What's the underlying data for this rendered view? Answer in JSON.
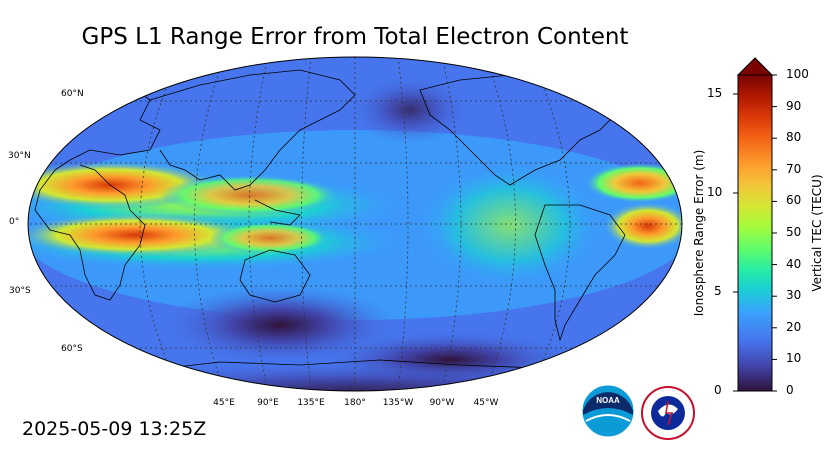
{
  "title": "GPS L1 Range Error from Total Electron Content",
  "timestamp": "2025-05-09 13:25Z",
  "lat_labels": [
    "60°N",
    "30°N",
    "0°",
    "30°S",
    "60°S"
  ],
  "lon_labels": [
    "45°E",
    "90°E",
    "135°E",
    "180°",
    "135°W",
    "90°W",
    "45°W"
  ],
  "colorbar": {
    "left_label": "Ionosphere Range Error (m)",
    "right_label": "Vertical TEC (TECU)",
    "left_ticks": [
      "0",
      "5",
      "10",
      "15"
    ],
    "right_ticks": [
      "0",
      "10",
      "20",
      "30",
      "40",
      "50",
      "60",
      "70",
      "80",
      "90",
      "100"
    ],
    "colors": [
      "#30123b",
      "#4145ab",
      "#4675ed",
      "#39a2fc",
      "#1bcfd4",
      "#24eca6",
      "#61fc6c",
      "#a4fc3b",
      "#d1e834",
      "#f3c63a",
      "#fe9b2d",
      "#f36315",
      "#d93806",
      "#b11901",
      "#7a0402"
    ]
  },
  "logos": {
    "noaa": "NOAA",
    "nws": "NATIONAL WEATHER SERVICE"
  }
}
